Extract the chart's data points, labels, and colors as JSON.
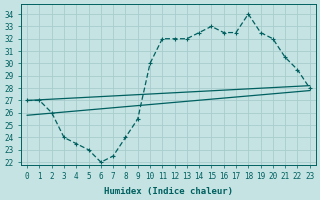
{
  "xlabel": "Humidex (Indice chaleur)",
  "bg_color": "#c5e3e3",
  "grid_color": "#a8cccc",
  "line_color": "#006060",
  "xlim": [
    -0.5,
    23.5
  ],
  "ylim": [
    21.8,
    34.8
  ],
  "yticks": [
    22,
    23,
    24,
    25,
    26,
    27,
    28,
    29,
    30,
    31,
    32,
    33,
    34
  ],
  "xticks": [
    0,
    1,
    2,
    3,
    4,
    5,
    6,
    7,
    8,
    9,
    10,
    11,
    12,
    13,
    14,
    15,
    16,
    17,
    18,
    19,
    20,
    21,
    22,
    23
  ],
  "curve_x": [
    0,
    1,
    2,
    3,
    4,
    5,
    6,
    7,
    8,
    9,
    10,
    11,
    12,
    13,
    14,
    15,
    16,
    17,
    18,
    19,
    20,
    21,
    22,
    23
  ],
  "curve_y": [
    27,
    27,
    26,
    24,
    23.5,
    23,
    22,
    22.5,
    24,
    25.5,
    30,
    32,
    32,
    32,
    32.5,
    33,
    32.5,
    32.5,
    34,
    32.5,
    32,
    30.5,
    29.5,
    28
  ],
  "line1_x": [
    0,
    23
  ],
  "line1_y": [
    27.0,
    28.2
  ],
  "line2_x": [
    0,
    23
  ],
  "line2_y": [
    25.8,
    27.8
  ]
}
